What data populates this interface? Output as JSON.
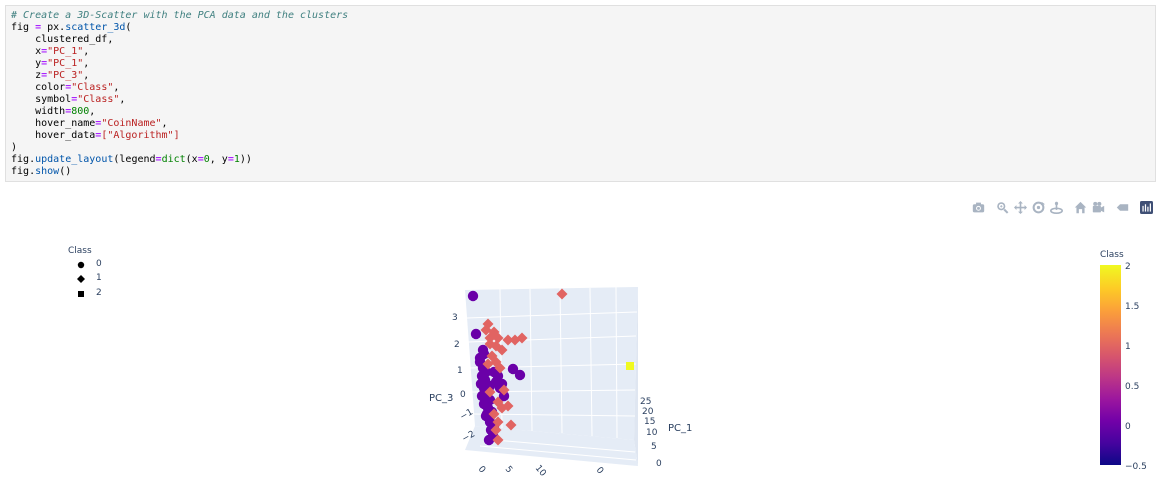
{
  "code": {
    "comment": "# Create a 3D-Scatter with the PCA data and the clusters",
    "fig": "fig",
    "eq": " = ",
    "px": "px",
    "dot": ".",
    "fn_scatter": "scatter_3d",
    "open_paren": "(",
    "line_df": "    clustered_df,",
    "x_key": "    x",
    "x_val": "\"PC_1\"",
    "y_key": "    y",
    "y_val": "\"PC_1\"",
    "z_key": "    z",
    "z_val": "\"PC_3\"",
    "color_key": "    color",
    "color_val": "\"Class\"",
    "symbol_key": "    symbol",
    "symbol_val": "\"Class\"",
    "width_key": "    width",
    "width_val": "800",
    "hover_name_key": "    hover_name",
    "hover_name_val": "\"CoinName\"",
    "hover_data_key": "    hover_data",
    "hover_data_val": "[\"Algorithm\"]",
    "close_paren": ")",
    "update_fn": "update_layout",
    "legend_kw": "legend",
    "dict_fn": "dict",
    "x0": "(x",
    "zero": "0",
    "y1": ", y",
    "one": "1",
    "close2": "))",
    "show_fn": "show",
    "show_paren": "()",
    "eqs": "=",
    "comma": ","
  },
  "modebar": {
    "buttons": [
      {
        "name": "camera-icon"
      },
      {
        "name": "zoom-icon"
      },
      {
        "name": "pan-icon"
      },
      {
        "name": "orbit-icon"
      },
      {
        "name": "turntable-icon"
      },
      {
        "name": "home-icon"
      },
      {
        "name": "camera-view-icon"
      },
      {
        "name": "hover-toggle-icon"
      },
      {
        "name": "plotly-logo-icon"
      }
    ]
  },
  "legend": {
    "title": "Class",
    "items": [
      {
        "label": "0",
        "symbol": "circle"
      },
      {
        "label": "1",
        "symbol": "diamond"
      },
      {
        "label": "2",
        "symbol": "square"
      }
    ]
  },
  "colorbar": {
    "title": "Class",
    "ticks": [
      "2",
      "1.5",
      "1",
      "0.5",
      "0",
      "−0.5"
    ],
    "colors": [
      "#0d0887",
      "#7201a8",
      "#bd3786",
      "#ed7953",
      "#fdca26",
      "#f0f921"
    ]
  },
  "plot": {
    "z_axis_title": "PC_3",
    "x_axis_title": "PC_1",
    "z_ticks": [
      "3",
      "2",
      "1",
      "0",
      "−1",
      "−2"
    ],
    "x_ticks": [
      "25",
      "20",
      "15",
      "10",
      "5",
      "0"
    ],
    "bottom_ticks": [
      "0",
      "5",
      "10",
      "0"
    ],
    "bg_color": "#e5ecf6",
    "class0_color": "#6a00a8",
    "class1_color": "#e16462",
    "class2_color": "#f0f921"
  }
}
